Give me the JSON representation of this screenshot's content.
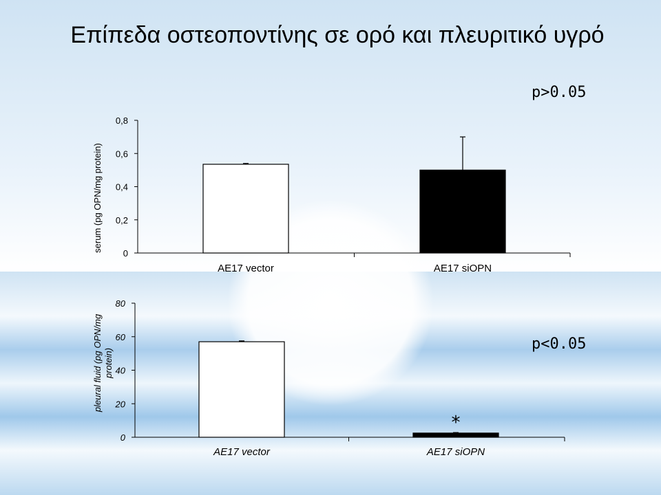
{
  "slide": {
    "title": "Επίπεδα οστεοποντίνης σε ορό και πλευριτικό υγρό",
    "accent_colors": {
      "background_blue": "#a9cdec",
      "band_blue": "#8fc0e6",
      "bar_white": "#ffffff",
      "bar_black": "#000000"
    }
  },
  "chart_data": [
    {
      "type": "bar",
      "categories": [
        "AE17 vector",
        "AE17 siOPN"
      ],
      "series": [
        {
          "values": [
            0.535,
            0.5
          ],
          "errors": [
            0.005,
            0.2
          ],
          "colors": [
            "#ffffff",
            "#000000"
          ]
        }
      ],
      "ylabel": "serum (pg OPN/mg protein)",
      "yticks": [
        "0",
        "0,2",
        "0,4",
        "0,6",
        "0,8"
      ],
      "ylim": [
        0,
        0.8
      ],
      "annotation": "p>0.05",
      "italic": false
    },
    {
      "type": "bar",
      "categories": [
        "AE17 vector",
        "AE17 siOPN"
      ],
      "series": [
        {
          "values": [
            57,
            2.5
          ],
          "errors": [
            0.5,
            0.3
          ],
          "colors": [
            "#ffffff",
            "#000000"
          ]
        }
      ],
      "ylabel": "pleural fluid (pg OPN/mg protein)",
      "ylabel_lines": [
        "pleural fluid (pg OPN/mg",
        "protein)"
      ],
      "yticks": [
        "0",
        "20",
        "40",
        "60",
        "80"
      ],
      "ylim": [
        0,
        80
      ],
      "annotation": "p<0.05",
      "bar_marker": "*",
      "italic": true
    }
  ]
}
